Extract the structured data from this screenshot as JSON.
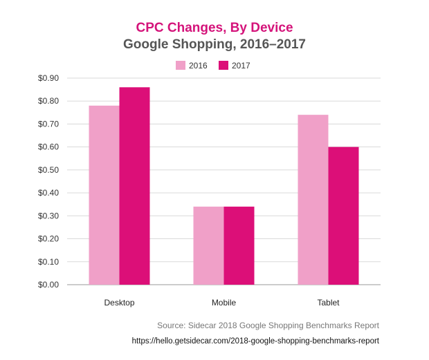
{
  "chart_data": {
    "type": "bar",
    "title": "CPC Changes, By Device",
    "subtitle": "Google Shopping, 2016–2017",
    "categories": [
      "Desktop",
      "Mobile",
      "Tablet"
    ],
    "series": [
      {
        "name": "2016",
        "values": [
          0.78,
          0.34,
          0.74
        ],
        "color": "#f0a0c8"
      },
      {
        "name": "2017",
        "values": [
          0.86,
          0.34,
          0.6
        ],
        "color": "#dc0f78"
      }
    ],
    "ylim": [
      0,
      0.9
    ],
    "yticks": [
      {
        "value": 0.0,
        "label": "$0.00"
      },
      {
        "value": 0.1,
        "label": "$0.10"
      },
      {
        "value": 0.2,
        "label": "$0.20"
      },
      {
        "value": 0.3,
        "label": "$0.30"
      },
      {
        "value": 0.4,
        "label": "$0.40"
      },
      {
        "value": 0.5,
        "label": "$0.50"
      },
      {
        "value": 0.6,
        "label": "$0.60"
      },
      {
        "value": 0.7,
        "label": "$0.70"
      },
      {
        "value": 0.8,
        "label": "$0.80"
      },
      {
        "value": 0.9,
        "label": "$0.90"
      }
    ],
    "grid": true,
    "legend_position": "top-center"
  },
  "source": {
    "text": "Source: Sidecar 2018 Google Shopping Benchmarks Report",
    "url": "https://hello.getsidecar.com/2018-google-shopping-benchmarks-report"
  }
}
